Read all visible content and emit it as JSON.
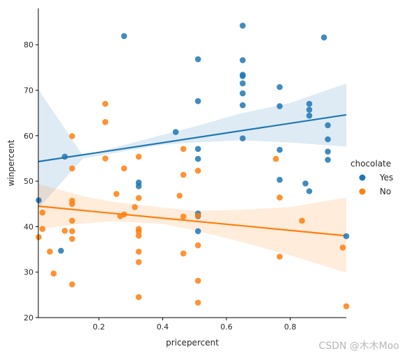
{
  "chart_data": {
    "type": "scatter",
    "xlabel": "pricepercent",
    "ylabel": "winpercent",
    "xlim": [
      0.01,
      0.976
    ],
    "ylim": [
      20,
      88
    ],
    "xticks": [
      0.2,
      0.4,
      0.6,
      0.8
    ],
    "yticks": [
      20,
      30,
      40,
      50,
      60,
      70,
      80
    ],
    "xtick_labels": [
      "0.2",
      "0.4",
      "0.6",
      "0.8"
    ],
    "ytick_labels": [
      "20",
      "30",
      "40",
      "50",
      "60",
      "70",
      "80"
    ],
    "grid": false,
    "legend": {
      "title": "chocolate",
      "placement": "outside-right",
      "entries": [
        "Yes",
        "No"
      ]
    },
    "series": [
      {
        "name": "Yes",
        "color": "#1f77b4",
        "points": [
          [
            0.011,
            45.8
          ],
          [
            0.093,
            55.4
          ],
          [
            0.279,
            81.9
          ],
          [
            0.325,
            49.7
          ],
          [
            0.325,
            48.9
          ],
          [
            0.441,
            60.8
          ],
          [
            0.511,
            76.8
          ],
          [
            0.511,
            67.6
          ],
          [
            0.511,
            57.1
          ],
          [
            0.511,
            54.9
          ],
          [
            0.511,
            42.9
          ],
          [
            0.511,
            42.3
          ],
          [
            0.511,
            39.0
          ],
          [
            0.651,
            84.2
          ],
          [
            0.651,
            76.6
          ],
          [
            0.651,
            73.4
          ],
          [
            0.651,
            73.1
          ],
          [
            0.651,
            71.5
          ],
          [
            0.651,
            69.3
          ],
          [
            0.651,
            66.7
          ],
          [
            0.651,
            59.4
          ],
          [
            0.767,
            70.7
          ],
          [
            0.767,
            66.5
          ],
          [
            0.767,
            56.9
          ],
          [
            0.767,
            50.3
          ],
          [
            0.848,
            49.5
          ],
          [
            0.86,
            67.0
          ],
          [
            0.86,
            65.7
          ],
          [
            0.86,
            64.4
          ],
          [
            0.86,
            47.8
          ],
          [
            0.906,
            81.6
          ],
          [
            0.918,
            62.3
          ],
          [
            0.918,
            59.2
          ],
          [
            0.918,
            56.5
          ],
          [
            0.918,
            54.7
          ],
          [
            0.976,
            37.9
          ],
          [
            0.081,
            34.7
          ]
        ],
        "regression": {
          "x": [
            0.01,
            0.976
          ],
          "y": [
            54.3,
            64.6
          ]
        },
        "ci_upper": [
          70.2,
          55.6,
          57.4,
          60.2,
          62.0,
          65.0,
          67.2,
          71.5
        ],
        "ci_lower": [
          44.0,
          55.0,
          56.2,
          58.0,
          58.5,
          59.0,
          58.5,
          57.6
        ],
        "ci_x": [
          0.01,
          0.15,
          0.25,
          0.4,
          0.5,
          0.65,
          0.8,
          0.976
        ]
      },
      {
        "name": "No",
        "color": "#ff7f0e",
        "points": [
          [
            0.011,
            37.7
          ],
          [
            0.023,
            43.1
          ],
          [
            0.023,
            39.5
          ],
          [
            0.046,
            34.5
          ],
          [
            0.058,
            29.7
          ],
          [
            0.093,
            39.1
          ],
          [
            0.116,
            59.9
          ],
          [
            0.116,
            52.8
          ],
          [
            0.116,
            45.7
          ],
          [
            0.116,
            45.0
          ],
          [
            0.116,
            41.3
          ],
          [
            0.116,
            39.0
          ],
          [
            0.116,
            37.3
          ],
          [
            0.116,
            27.3
          ],
          [
            0.22,
            67.0
          ],
          [
            0.22,
            63.0
          ],
          [
            0.22,
            55.0
          ],
          [
            0.255,
            47.2
          ],
          [
            0.267,
            42.3
          ],
          [
            0.279,
            52.8
          ],
          [
            0.279,
            42.7
          ],
          [
            0.313,
            44.3
          ],
          [
            0.325,
            55.4
          ],
          [
            0.325,
            46.3
          ],
          [
            0.325,
            39.5
          ],
          [
            0.325,
            38.9
          ],
          [
            0.325,
            38.0
          ],
          [
            0.325,
            34.5
          ],
          [
            0.325,
            32.2
          ],
          [
            0.325,
            24.5
          ],
          [
            0.453,
            46.8
          ],
          [
            0.465,
            57.1
          ],
          [
            0.465,
            51.4
          ],
          [
            0.465,
            42.2
          ],
          [
            0.465,
            34.1
          ],
          [
            0.511,
            52.3
          ],
          [
            0.511,
            42.4
          ],
          [
            0.511,
            35.9
          ],
          [
            0.511,
            28.1
          ],
          [
            0.511,
            23.3
          ],
          [
            0.755,
            54.9
          ],
          [
            0.767,
            46.4
          ],
          [
            0.767,
            33.4
          ],
          [
            0.837,
            41.3
          ],
          [
            0.965,
            35.4
          ],
          [
            0.976,
            22.5
          ]
        ],
        "regression": {
          "x": [
            0.01,
            0.976
          ],
          "y": [
            44.5,
            38.0
          ]
        },
        "ci_upper": [
          49.4,
          46.7,
          45.4,
          44.2,
          43.5,
          43.7,
          44.3,
          46.4
        ],
        "ci_lower": [
          39.4,
          40.7,
          41.2,
          40.6,
          39.2,
          36.6,
          33.7,
          29.9
        ],
        "ci_x": [
          0.01,
          0.15,
          0.25,
          0.4,
          0.5,
          0.65,
          0.8,
          0.976
        ]
      }
    ]
  },
  "watermark": "CSDN @木木Moo"
}
